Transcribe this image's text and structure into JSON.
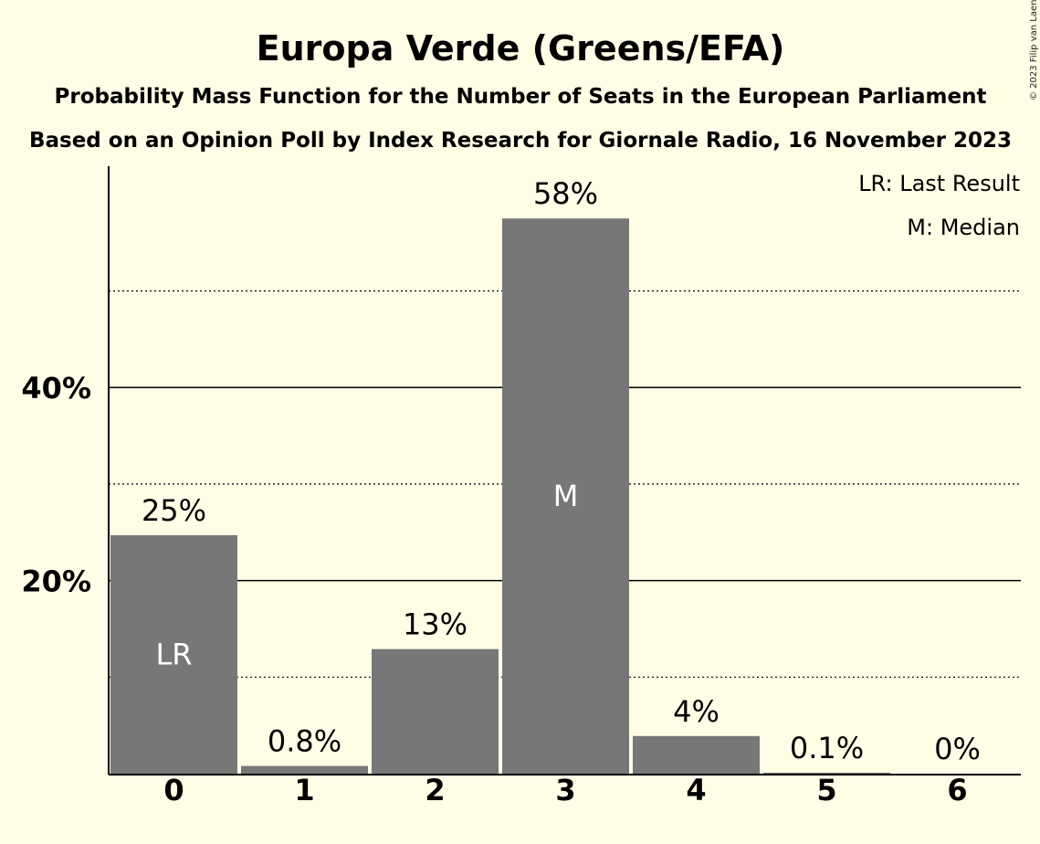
{
  "title": "Europa Verde (Greens/EFA)",
  "subtitle1": "Probability Mass Function for the Number of Seats in the European Parliament",
  "subtitle2": "Based on an Opinion Poll by Index Research for Giornale Radio, 16 November 2023",
  "copyright": "© 2023 Filip van Laenen",
  "legend": {
    "last_result": "LR: Last Result",
    "median": "M: Median"
  },
  "colors": {
    "background": "#fffde6",
    "bar": "#777777",
    "axis": "#000000"
  },
  "chart_data": {
    "type": "bar",
    "categories": [
      "0",
      "1",
      "2",
      "3",
      "4",
      "5",
      "6"
    ],
    "values": [
      24.7,
      0.8,
      12.9,
      57.5,
      3.9,
      0.1,
      0
    ],
    "data_labels": [
      "25%",
      "0.8%",
      "13%",
      "58%",
      "4%",
      "0.1%",
      "0%"
    ],
    "bar_markers": [
      "LR",
      "",
      "",
      "M",
      "",
      "",
      ""
    ],
    "ylim": [
      0,
      62.5
    ],
    "y_ticks": [
      20,
      40
    ],
    "y_tick_labels": [
      "20%",
      "40%"
    ],
    "minor_gridlines": [
      10,
      30,
      50
    ],
    "grid": true,
    "legend_position": "top-right"
  }
}
